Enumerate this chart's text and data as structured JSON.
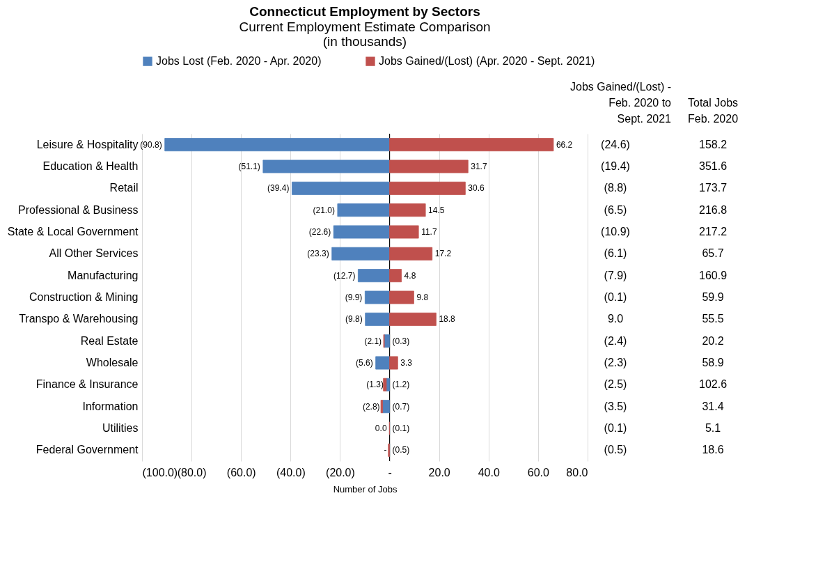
{
  "chart_data": {
    "type": "bar",
    "orientation": "horizontal",
    "title": "Connecticut Employment by Sectors",
    "subtitle": "Current Employment Estimate Comparison\n(in thousands)",
    "xlabel": "Number of Jobs",
    "stacked": true,
    "legend": "top",
    "grid": "x",
    "categories": [
      "Leisure & Hospitality",
      "Education & Health",
      "Retail",
      "Professional & Business",
      "State & Local Government",
      "All Other Services",
      "Manufacturing",
      "Construction & Mining",
      "Transpo & Warehousing",
      "Real Estate",
      "Wholesale",
      "Finance & Insurance",
      "Information",
      "Utilities",
      "Federal Government"
    ],
    "xlim": [
      -100,
      80
    ],
    "xticks": [
      {
        "value": -100,
        "label": "(100.0)"
      },
      {
        "value": -80,
        "label": "(80.0)"
      },
      {
        "value": -60,
        "label": "(60.0)"
      },
      {
        "value": -40,
        "label": "(40.0)"
      },
      {
        "value": -20,
        "label": "(20.0)"
      },
      {
        "value": 0,
        "label": "-"
      },
      {
        "value": 20,
        "label": "20.0"
      },
      {
        "value": 40,
        "label": "40.0"
      },
      {
        "value": 60,
        "label": "60.0"
      },
      {
        "value": 80,
        "label": "80.0"
      }
    ],
    "ref_lines": [
      {
        "axis": "x",
        "value": 0,
        "color": "#000000"
      }
    ],
    "series": [
      {
        "name": "Jobs Lost (Feb. 2020 - Apr. 2020)",
        "color": "#4f81bd",
        "values": [
          -90.8,
          -51.1,
          -39.4,
          -21.0,
          -22.6,
          -23.3,
          -12.7,
          -9.9,
          -9.8,
          -2.1,
          -5.6,
          -1.3,
          -2.8,
          0.0,
          0
        ],
        "value_labels": [
          "(90.8)",
          "(51.1)",
          "(39.4)",
          "(21.0)",
          "(22.6)",
          "(23.3)",
          "(12.7)",
          "(9.9)",
          "(9.8)",
          "(2.1)",
          "(5.6)",
          "(1.3)",
          "(2.8)",
          "0.0",
          "-"
        ]
      },
      {
        "name": "Jobs Gained/(Lost) (Apr. 2020 - Sept. 2021)",
        "color": "#c0504d",
        "values": [
          66.2,
          31.7,
          30.6,
          14.5,
          11.7,
          17.2,
          4.8,
          9.8,
          18.8,
          -0.3,
          3.3,
          -1.2,
          -0.7,
          -0.1,
          -0.5
        ],
        "value_labels": [
          "66.2",
          "31.7",
          "30.6",
          "14.5",
          "11.7",
          "17.2",
          "4.8",
          "9.8",
          "18.8",
          "(0.3)",
          "3.3",
          "(1.2)",
          "(0.7)",
          "(0.1)",
          "(0.5)"
        ]
      }
    ],
    "annotations": [
      "Jobs Gained/(Lost) -\nFeb. 2020 to\nSept. 2021",
      "Total Jobs\nFeb. 2020",
      "(24.6)",
      "158.2",
      "(19.4)",
      "351.6",
      "(8.8)",
      "173.7",
      "(6.5)",
      "216.8",
      "(10.9)",
      "217.2",
      "(6.1)",
      "65.7",
      "(7.9)",
      "160.9",
      "(0.1)",
      "59.9",
      "9.0",
      "55.5",
      "(2.4)",
      "20.2",
      "(2.3)",
      "58.9",
      "(2.5)",
      "102.6",
      "(3.5)",
      "31.4",
      "(0.1)",
      "5.1",
      "(0.5)",
      "18.6"
    ]
  }
}
